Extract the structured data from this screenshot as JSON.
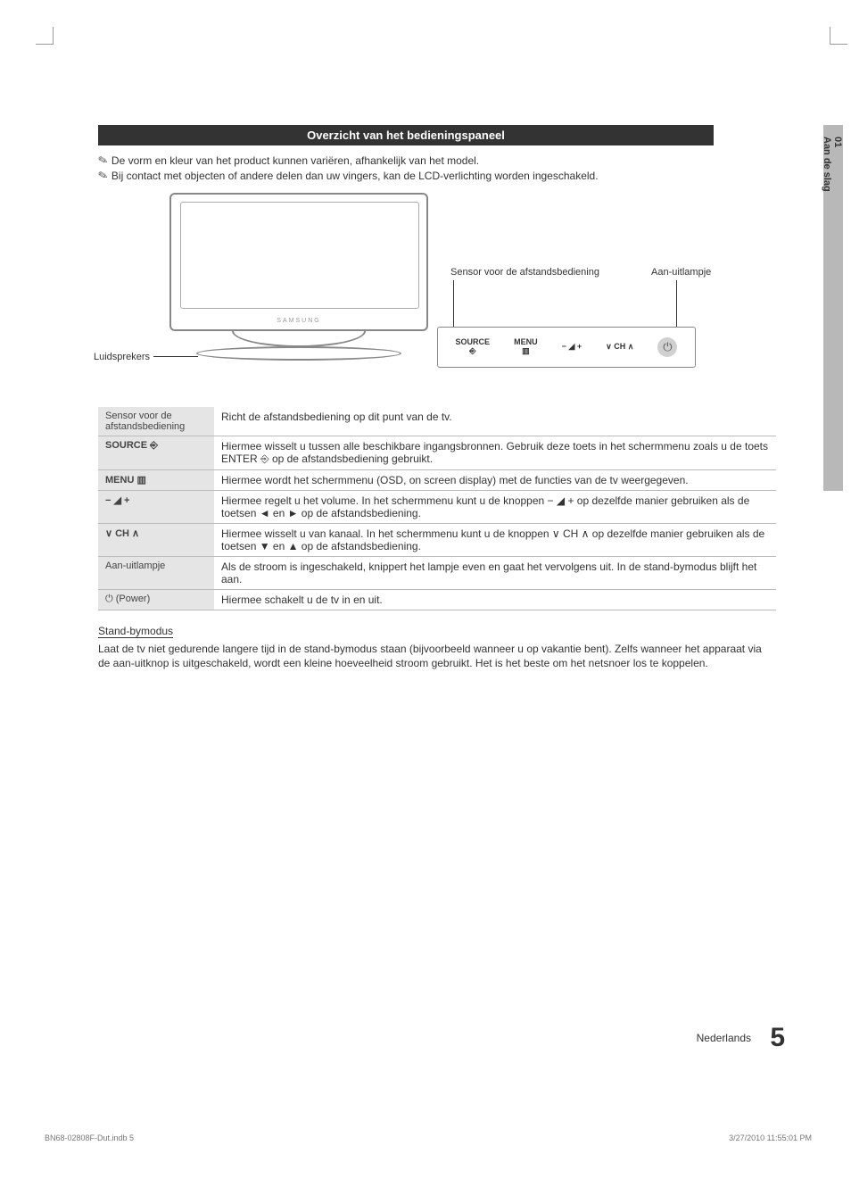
{
  "side_tab": {
    "num": "01",
    "label": "Aan de slag"
  },
  "heading": "Overzicht van het bedieningspaneel",
  "notes": [
    "De vorm en kleur van het product kunnen variëren, afhankelijk van het model.",
    "Bij contact met objecten of andere delen dan uw vingers, kan de LCD-verlichting worden ingeschakeld."
  ],
  "diagram": {
    "speakers_label": "Luidsprekers",
    "sensor_label": "Sensor voor de afstandsbediening",
    "power_led_label": "Aan-uitlampje",
    "brand": "SAMSUNG",
    "panel": {
      "source": "SOURCE",
      "menu": "MENU",
      "vol": "−  ◢  +",
      "ch": "∨  CH  ∧"
    }
  },
  "table": {
    "rows": [
      {
        "label": "Sensor voor de afstandsbediening",
        "bold": false,
        "desc": "Richt de afstandsbediening op dit punt van de tv."
      },
      {
        "label": "SOURCE ⎆",
        "bold": true,
        "desc": "Hiermee wisselt u tussen alle beschikbare ingangsbronnen. Gebruik deze toets in het schermmenu zoals u de toets ENTER ⎆ op de afstandsbediening gebruikt."
      },
      {
        "label": "MENU ▥",
        "bold": true,
        "desc": "Hiermee wordt het schermmenu (OSD, on screen display) met de functies van de tv weergegeven."
      },
      {
        "label": "− ◢ +",
        "bold": true,
        "desc": "Hiermee regelt u het volume. In het schermmenu kunt u de knoppen − ◢ + op dezelfde manier gebruiken als de toetsen ◄ en ► op de afstandsbediening."
      },
      {
        "label": "∨ CH ∧",
        "bold": true,
        "desc": "Hiermee wisselt u van kanaal. In het schermmenu kunt u de knoppen ∨ CH ∧ op dezelfde manier gebruiken als de toetsen ▼ en ▲ op de afstandsbediening."
      },
      {
        "label": "Aan-uitlampje",
        "bold": false,
        "desc": "Als de stroom is ingeschakeld, knippert het lampje even en gaat het vervolgens uit. In de stand-bymodus blijft het aan."
      },
      {
        "label": "⏻ (Power)",
        "bold": false,
        "desc": "Hiermee schakelt u de tv in en uit."
      }
    ]
  },
  "standby": {
    "heading": "Stand-bymodus",
    "body": "Laat de tv niet gedurende langere tijd in de stand-bymodus staan (bijvoorbeeld wanneer u op vakantie bent). Zelfs wanneer het apparaat via de aan-uitknop is uitgeschakeld, wordt een kleine hoeveelheid stroom gebruikt. Het is het beste om het netsnoer los te koppelen."
  },
  "footer": {
    "lang": "Nederlands",
    "page": "5",
    "meta_left": "BN68-02808F-Dut.indb   5",
    "meta_right": "3/27/2010   11:55:01 PM"
  },
  "colors": {
    "heading_bg": "#333333",
    "heading_fg": "#ffffff",
    "row_label_bg": "#e5e5e5",
    "side_tab_bg": "#b8b8b8",
    "text": "#333333",
    "border": "#bbbbbb"
  }
}
